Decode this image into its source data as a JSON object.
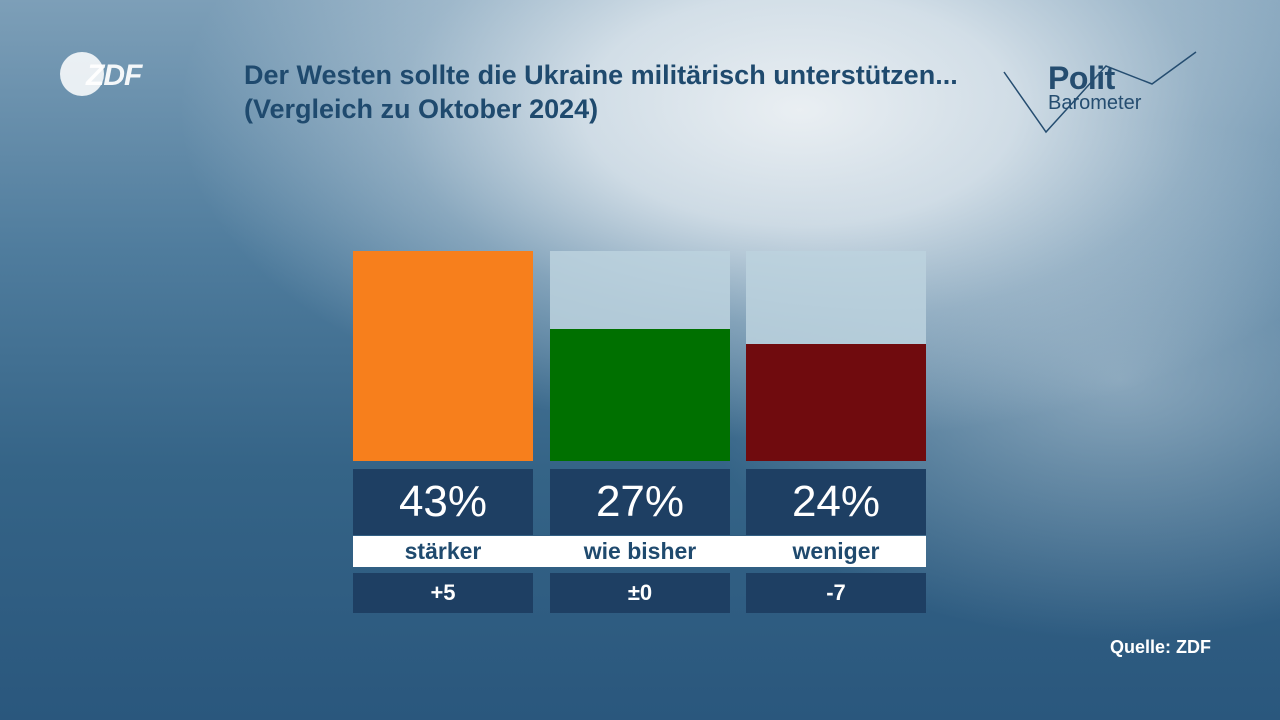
{
  "branding": {
    "broadcaster": "ZDF",
    "program_line1": "Polit",
    "program_line2": "Barometer"
  },
  "source": "Quelle: ZDF",
  "colors": {
    "orange": "#f77f1c",
    "green": "#007000",
    "darkred": "#700b0e",
    "navy": "#1e3f63",
    "title": "#1f4a6e"
  },
  "chart_data": {
    "type": "bar",
    "title": "Der Westen sollte die Ukraine militärisch unterstützen...(Vergleich zu Oktober 2024)",
    "categories": [
      "stärker",
      "wie bisher",
      "weniger"
    ],
    "values": [
      43,
      27,
      24
    ],
    "value_labels": [
      "43%",
      "27%",
      "24%"
    ],
    "changes": [
      "+5",
      "±0",
      "-7"
    ],
    "bar_colors": [
      "#f77f1c",
      "#007000",
      "#700b0e"
    ],
    "ylim": [
      0,
      43
    ],
    "unit": "%",
    "grid": false,
    "legend": "none"
  }
}
